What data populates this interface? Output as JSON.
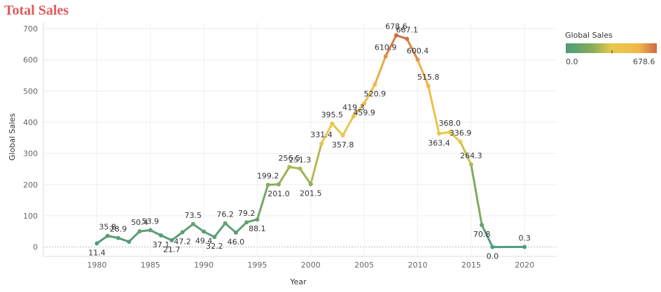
{
  "chart_data": {
    "type": "line",
    "title": "Total Sales",
    "xlabel": "Year",
    "ylabel": "Global Sales",
    "xlim": [
      1975,
      2023
    ],
    "ylim": [
      -30,
      720
    ],
    "x_ticks": [
      1980,
      1985,
      1990,
      1995,
      2000,
      2005,
      2010,
      2015,
      2020
    ],
    "y_ticks": [
      0,
      100,
      200,
      300,
      400,
      500,
      600,
      700
    ],
    "grid": true,
    "legend": {
      "title": "Global Sales",
      "min_label": "0.0",
      "max_label": "678.6",
      "placement": "top-right"
    },
    "color_scale": [
      "#4e9a7f",
      "#8aad5a",
      "#e8c94a",
      "#f0b84a",
      "#cd6a45"
    ],
    "x": [
      1980,
      1981,
      1982,
      1983,
      1984,
      1985,
      1986,
      1987,
      1988,
      1989,
      1990,
      1991,
      1992,
      1993,
      1994,
      1995,
      1996,
      1997,
      1998,
      1999,
      2000,
      2001,
      2002,
      2003,
      2004,
      2005,
      2006,
      2007,
      2008,
      2009,
      2010,
      2011,
      2012,
      2013,
      2014,
      2015,
      2016,
      2017,
      2020
    ],
    "values": [
      11.4,
      35.8,
      28.9,
      16.8,
      50.4,
      53.9,
      37.1,
      21.7,
      47.2,
      73.5,
      49.4,
      32.2,
      76.2,
      46.0,
      79.2,
      88.1,
      199.2,
      201.0,
      256.5,
      251.3,
      201.5,
      331.4,
      395.5,
      357.8,
      419.3,
      459.9,
      520.9,
      610.9,
      678.6,
      667.1,
      600.4,
      515.8,
      363.4,
      368.0,
      336.9,
      264.3,
      70.8,
      0.0,
      0.3
    ],
    "labels": [
      "11.4",
      "35.8",
      "28.9",
      "",
      "50.4",
      "53.9",
      "37.1",
      "21.7",
      "47.2",
      "73.5",
      "49.4",
      "32.2",
      "76.2",
      "46.0",
      "79.2",
      "88.1",
      "199.2",
      "201.0",
      "256.5",
      "251.3",
      "201.5",
      "331.4",
      "395.5",
      "357.8",
      "419.3",
      "459.9",
      "520.9",
      "610.9",
      "678.6",
      "667.1",
      "600.4",
      "515.8",
      "363.4",
      "368.0",
      "336.9",
      "264.3",
      "70.8",
      "0.0",
      "0.3"
    ]
  }
}
